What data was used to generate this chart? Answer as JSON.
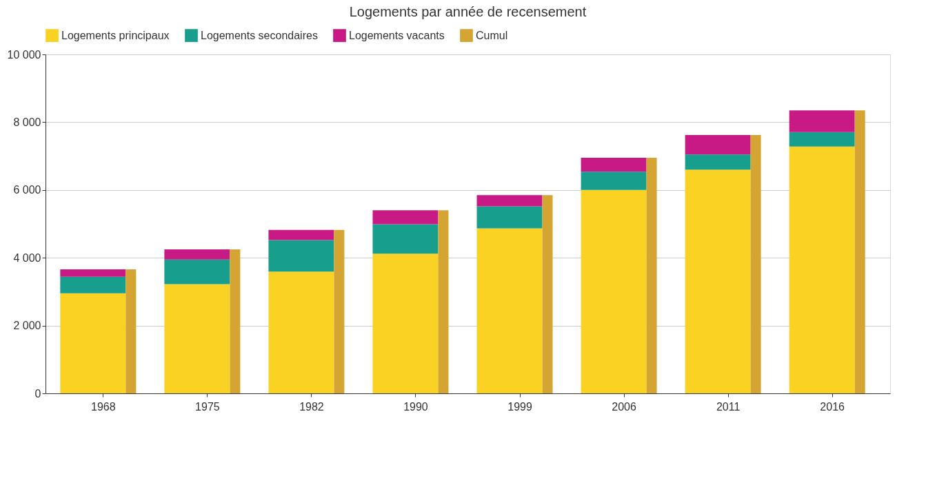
{
  "chart_data": {
    "type": "bar",
    "title": "Logements par année de recensement",
    "categories": [
      "1968",
      "1975",
      "1982",
      "1990",
      "1999",
      "2006",
      "2011",
      "2016"
    ],
    "series": [
      {
        "name": "Logements principaux",
        "color": "#f9d223",
        "base": [
          0,
          0,
          0,
          0,
          0,
          0,
          0,
          0
        ],
        "values": [
          2950,
          3220,
          3590,
          4120,
          4870,
          6000,
          6600,
          7280
        ]
      },
      {
        "name": "Logements secondaires",
        "color": "#179e8c",
        "base": [
          2950,
          3220,
          3590,
          4120,
          4870,
          6000,
          6600,
          7280
        ],
        "values": [
          490,
          730,
          930,
          870,
          650,
          540,
          450,
          430
        ]
      },
      {
        "name": "Logements vacants",
        "color": "#c71a85",
        "base": [
          3440,
          3950,
          4520,
          4990,
          5520,
          6540,
          7050,
          7710
        ],
        "values": [
          220,
          300,
          300,
          410,
          330,
          410,
          570,
          640
        ]
      },
      {
        "name": "Cumul",
        "color": "#d4a533",
        "values": [
          3660,
          4250,
          4820,
          5400,
          5850,
          6950,
          7620,
          8350
        ]
      }
    ],
    "ylim": [
      0,
      10000
    ],
    "yticks": [
      0,
      {
        "value": 2000,
        "label": "2 000"
      },
      {
        "value": 4000,
        "label": "4 000"
      },
      {
        "value": 6000,
        "label": "6 000"
      },
      {
        "value": 8000,
        "label": "8 000"
      },
      {
        "value": 10000,
        "label": "10 000"
      }
    ],
    "grid": "y",
    "legend": "top"
  }
}
